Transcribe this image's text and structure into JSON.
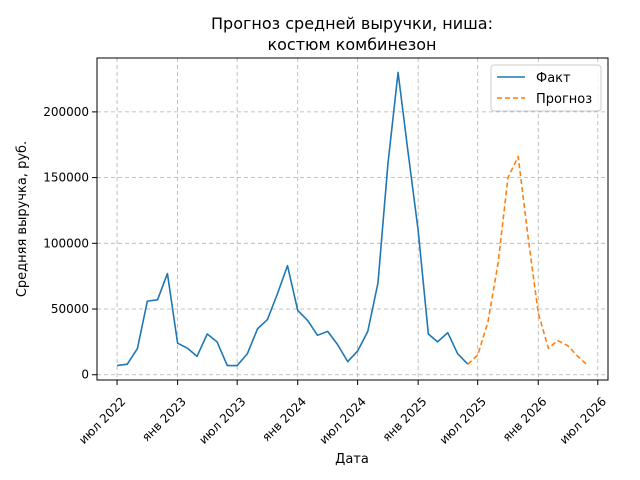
{
  "chart_data": {
    "type": "line",
    "title_lines": [
      "Прогноз средней выручки, ниша:",
      "костюм комбинезон"
    ],
    "xlabel": "Дата",
    "ylabel": "Средняя выручка, руб.",
    "x_ticks": [
      {
        "date": "2022-07-01",
        "label": "июл 2022"
      },
      {
        "date": "2023-01-01",
        "label": "янв 2023"
      },
      {
        "date": "2023-07-01",
        "label": "июл 2023"
      },
      {
        "date": "2024-01-01",
        "label": "янв 2024"
      },
      {
        "date": "2024-07-01",
        "label": "июл 2024"
      },
      {
        "date": "2025-01-01",
        "label": "янв 2025"
      },
      {
        "date": "2025-07-01",
        "label": "июл 2025"
      },
      {
        "date": "2026-01-01",
        "label": "янв 2026"
      },
      {
        "date": "2026-07-01",
        "label": "июл 2026"
      }
    ],
    "y_ticks": [
      0,
      50000,
      100000,
      150000,
      200000
    ],
    "y_tick_labels": [
      "0",
      "50000",
      "100000",
      "150000",
      "200000"
    ],
    "xlim": [
      "2022-05-01",
      "2026-08-01"
    ],
    "ylim": [
      -4000,
      241000
    ],
    "grid": true,
    "legend_position": "top-right",
    "series": [
      {
        "name": "Факт",
        "color": "#1f77b4",
        "style": "solid",
        "points": [
          [
            "2022-07-01",
            7000
          ],
          [
            "2022-08-01",
            8000
          ],
          [
            "2022-09-01",
            20000
          ],
          [
            "2022-10-01",
            56000
          ],
          [
            "2022-11-01",
            57000
          ],
          [
            "2022-12-01",
            77000
          ],
          [
            "2023-01-01",
            24000
          ],
          [
            "2023-02-01",
            20000
          ],
          [
            "2023-03-01",
            14000
          ],
          [
            "2023-04-01",
            31000
          ],
          [
            "2023-05-01",
            25000
          ],
          [
            "2023-06-01",
            7000
          ],
          [
            "2023-07-01",
            7000
          ],
          [
            "2023-08-01",
            16000
          ],
          [
            "2023-09-01",
            35000
          ],
          [
            "2023-10-01",
            42000
          ],
          [
            "2023-11-01",
            62000
          ],
          [
            "2023-12-01",
            83000
          ],
          [
            "2024-01-01",
            49000
          ],
          [
            "2024-02-01",
            41000
          ],
          [
            "2024-03-01",
            30000
          ],
          [
            "2024-04-01",
            33000
          ],
          [
            "2024-05-01",
            23000
          ],
          [
            "2024-06-01",
            10000
          ],
          [
            "2024-07-01",
            18000
          ],
          [
            "2024-08-01",
            33000
          ],
          [
            "2024-09-01",
            70000
          ],
          [
            "2024-10-01",
            160000
          ],
          [
            "2024-11-01",
            230000
          ],
          [
            "2024-12-01",
            170000
          ],
          [
            "2025-01-01",
            110000
          ],
          [
            "2025-02-01",
            31000
          ],
          [
            "2025-03-01",
            25000
          ],
          [
            "2025-04-01",
            32000
          ],
          [
            "2025-05-01",
            16000
          ],
          [
            "2025-06-01",
            8000
          ]
        ]
      },
      {
        "name": "Прогноз",
        "color": "#ff7f0e",
        "style": "dashed",
        "points": [
          [
            "2025-06-01",
            8000
          ],
          [
            "2025-07-01",
            15000
          ],
          [
            "2025-08-01",
            40000
          ],
          [
            "2025-09-01",
            85000
          ],
          [
            "2025-10-01",
            150000
          ],
          [
            "2025-11-01",
            166000
          ],
          [
            "2025-12-01",
            105000
          ],
          [
            "2026-01-01",
            47000
          ],
          [
            "2026-02-01",
            20000
          ],
          [
            "2026-03-01",
            26000
          ],
          [
            "2026-04-01",
            22000
          ],
          [
            "2026-05-01",
            14000
          ],
          [
            "2026-06-01",
            7000
          ]
        ]
      }
    ]
  }
}
